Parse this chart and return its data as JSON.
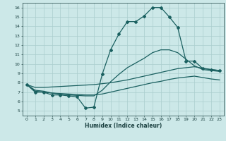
{
  "title": "",
  "xlabel": "Humidex (Indice chaleur)",
  "ylabel": "",
  "xlim": [
    -0.5,
    23.5
  ],
  "ylim": [
    4.5,
    16.5
  ],
  "xticks": [
    0,
    1,
    2,
    3,
    4,
    5,
    6,
    7,
    8,
    9,
    10,
    11,
    12,
    13,
    14,
    15,
    16,
    17,
    18,
    19,
    20,
    21,
    22,
    23
  ],
  "yticks": [
    5,
    6,
    7,
    8,
    9,
    10,
    11,
    12,
    13,
    14,
    15,
    16
  ],
  "bg_color": "#cce8e8",
  "grid_color": "#aacece",
  "line_color": "#1a6060",
  "lines": [
    {
      "x": [
        0,
        1,
        2,
        3,
        4,
        5,
        6,
        7,
        8,
        9,
        10,
        11,
        12,
        13,
        14,
        15,
        16,
        17,
        18,
        19,
        20,
        21,
        22,
        23
      ],
      "y": [
        7.8,
        7.0,
        7.0,
        6.7,
        6.7,
        6.6,
        6.5,
        5.3,
        5.4,
        8.9,
        11.5,
        13.2,
        14.5,
        14.5,
        15.1,
        16.0,
        16.0,
        15.0,
        13.9,
        10.3,
        10.3,
        9.5,
        9.4,
        9.3
      ],
      "marker": "D",
      "markersize": 2.0,
      "linewidth": 0.9
    },
    {
      "x": [
        0,
        1,
        2,
        3,
        4,
        5,
        6,
        7,
        8,
        9,
        10,
        11,
        12,
        13,
        14,
        15,
        16,
        17,
        18,
        19,
        20,
        21,
        22,
        23
      ],
      "y": [
        7.8,
        7.5,
        7.5,
        7.55,
        7.6,
        7.65,
        7.7,
        7.75,
        7.8,
        7.9,
        8.0,
        8.15,
        8.3,
        8.5,
        8.7,
        8.9,
        9.1,
        9.3,
        9.5,
        9.6,
        9.7,
        9.55,
        9.4,
        9.3
      ],
      "marker": null,
      "markersize": 0,
      "linewidth": 0.9
    },
    {
      "x": [
        0,
        1,
        2,
        3,
        4,
        5,
        6,
        7,
        8,
        9,
        10,
        11,
        12,
        13,
        14,
        15,
        16,
        17,
        18,
        19,
        20,
        21,
        22,
        23
      ],
      "y": [
        7.8,
        7.2,
        7.1,
        6.9,
        6.85,
        6.8,
        6.75,
        6.7,
        6.7,
        6.8,
        7.0,
        7.2,
        7.4,
        7.6,
        7.8,
        8.0,
        8.15,
        8.35,
        8.5,
        8.6,
        8.7,
        8.55,
        8.4,
        8.3
      ],
      "marker": null,
      "markersize": 0,
      "linewidth": 0.9
    },
    {
      "x": [
        0,
        1,
        2,
        3,
        4,
        5,
        6,
        7,
        8,
        9,
        10,
        11,
        12,
        13,
        14,
        15,
        16,
        17,
        18,
        19,
        20,
        21,
        22,
        23
      ],
      "y": [
        7.8,
        7.1,
        7.0,
        6.9,
        6.8,
        6.7,
        6.65,
        6.6,
        6.6,
        7.2,
        8.1,
        8.9,
        9.6,
        10.1,
        10.6,
        11.2,
        11.5,
        11.5,
        11.2,
        10.5,
        9.8,
        9.4,
        9.3,
        9.2
      ],
      "marker": null,
      "markersize": 0,
      "linewidth": 0.9
    }
  ],
  "tick_fontsize": 4.5,
  "label_fontsize": 5.5,
  "tick_label_color": "#1a4040"
}
